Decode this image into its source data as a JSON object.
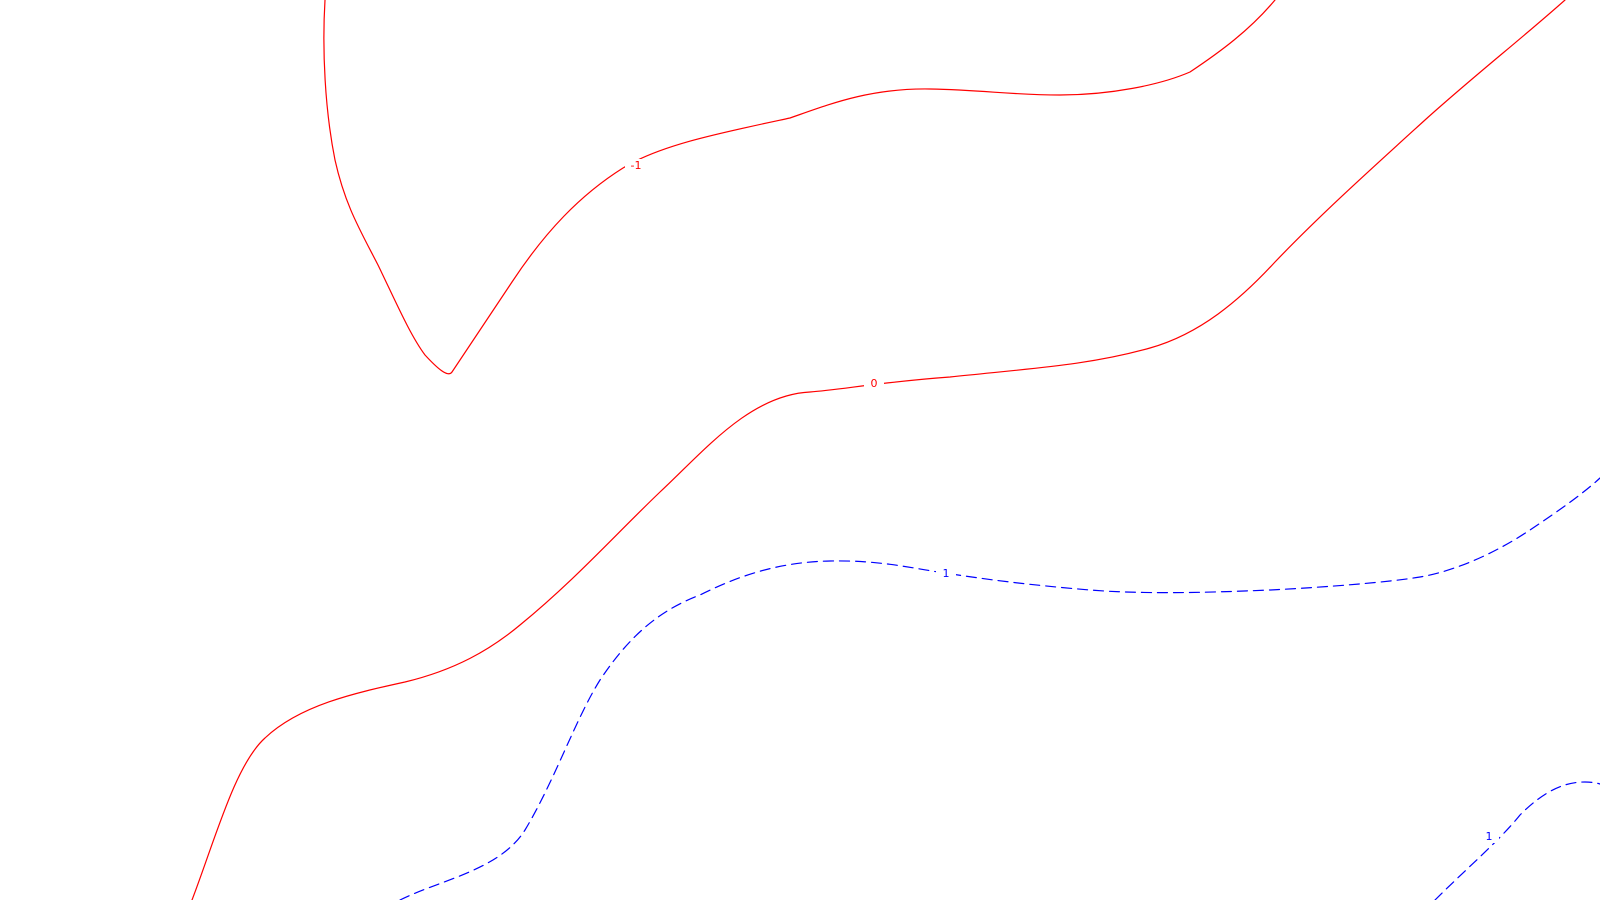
{
  "map": {
    "contours": [
      {
        "id": "contour-minus-1",
        "label": "-1",
        "style": "solid",
        "color": "#ff0000"
      },
      {
        "id": "contour-0",
        "label": "0",
        "style": "solid",
        "color": "#ff0000"
      },
      {
        "id": "contour-plus-1",
        "label": "1",
        "style": "dashed",
        "color": "#0000ff"
      },
      {
        "id": "contour-plus-1-corner",
        "label": "1",
        "style": "dashed",
        "color": "#0000ff"
      }
    ]
  }
}
